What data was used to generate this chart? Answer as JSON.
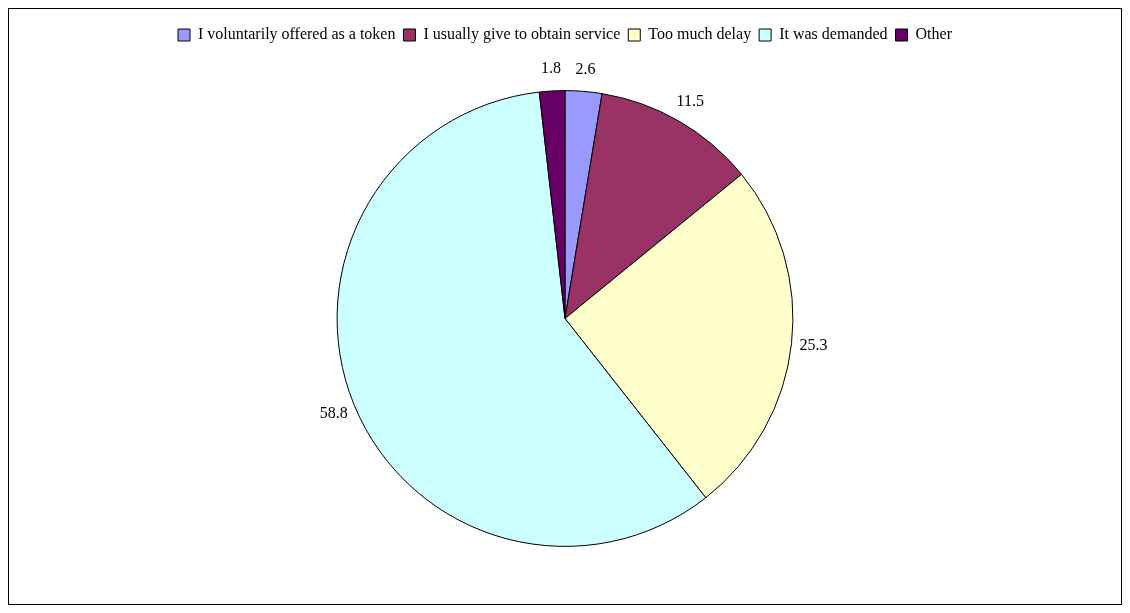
{
  "chart_data": {
    "type": "pie",
    "categories": [
      "I voluntarily offered as a token",
      "I usually give to obtain service",
      "Too much delay",
      "It was demanded",
      "Other"
    ],
    "values": [
      2.6,
      11.5,
      25.3,
      58.8,
      1.8
    ],
    "colors": [
      "#9999ff",
      "#993366",
      "#ffffcc",
      "#ccffff",
      "#660066"
    ],
    "data_labels": true,
    "legend": "top"
  }
}
